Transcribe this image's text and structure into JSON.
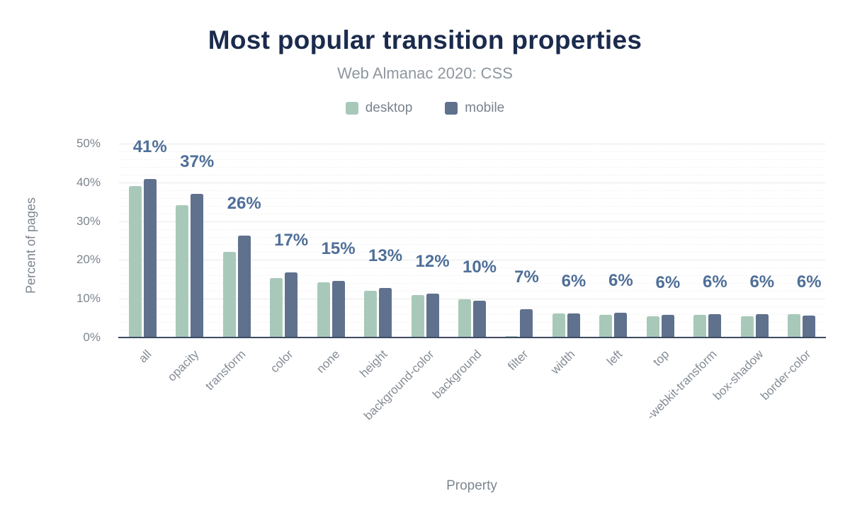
{
  "title": "Most popular transition properties",
  "subtitle": "Web Almanac 2020: CSS",
  "legend": [
    {
      "label": "desktop",
      "color": "#a8c9b9"
    },
    {
      "label": "mobile",
      "color": "#5f718d"
    }
  ],
  "y_axis": {
    "title": "Percent of pages",
    "ticks": [
      "0%",
      "10%",
      "20%",
      "30%",
      "40%",
      "50%"
    ],
    "max": 50
  },
  "x_axis": {
    "title": "Property"
  },
  "colors": {
    "title_text": "#1b2b4d",
    "subtitle_text": "#8f969e",
    "axis_text": "#7d858f",
    "tick_text": "#858c95",
    "value_label_text": "#4f6f98",
    "desktop_bar": "#a8c9b9",
    "mobile_bar": "#5f718d",
    "baseline": "#3d4a61",
    "major_gridline": "#e8e9ea",
    "minor_gridline": "#f4f4f6"
  },
  "chart_data": {
    "type": "bar",
    "title": "Most popular transition properties",
    "subtitle": "Web Almanac 2020: CSS",
    "xlabel": "Property",
    "ylabel": "Percent of pages",
    "ylim": [
      0,
      50
    ],
    "grid": "major solid lines every 10%, faint dashed minor lines every 2%",
    "legend_position": "top-center",
    "categories": [
      "all",
      "opacity",
      "transform",
      "color",
      "none",
      "height",
      "background-color",
      "background",
      "filter",
      "width",
      "left",
      "top",
      "-webkit-transform",
      "box-shadow",
      "border-color"
    ],
    "series": [
      {
        "name": "desktop",
        "values": [
          39.1,
          34.2,
          22.0,
          15.3,
          14.3,
          12.0,
          11.0,
          9.8,
          0.4,
          6.2,
          5.9,
          5.4,
          5.9,
          5.5,
          6.0
        ]
      },
      {
        "name": "mobile",
        "values": [
          40.9,
          37.1,
          26.3,
          16.8,
          14.6,
          12.8,
          11.4,
          9.5,
          7.3,
          6.2,
          6.3,
          5.9,
          6.0,
          6.0,
          5.6
        ]
      }
    ],
    "value_labels": [
      "41%",
      "37%",
      "26%",
      "17%",
      "15%",
      "13%",
      "12%",
      "10%",
      "7%",
      "6%",
      "6%",
      "6%",
      "6%",
      "6%",
      "6%"
    ]
  }
}
